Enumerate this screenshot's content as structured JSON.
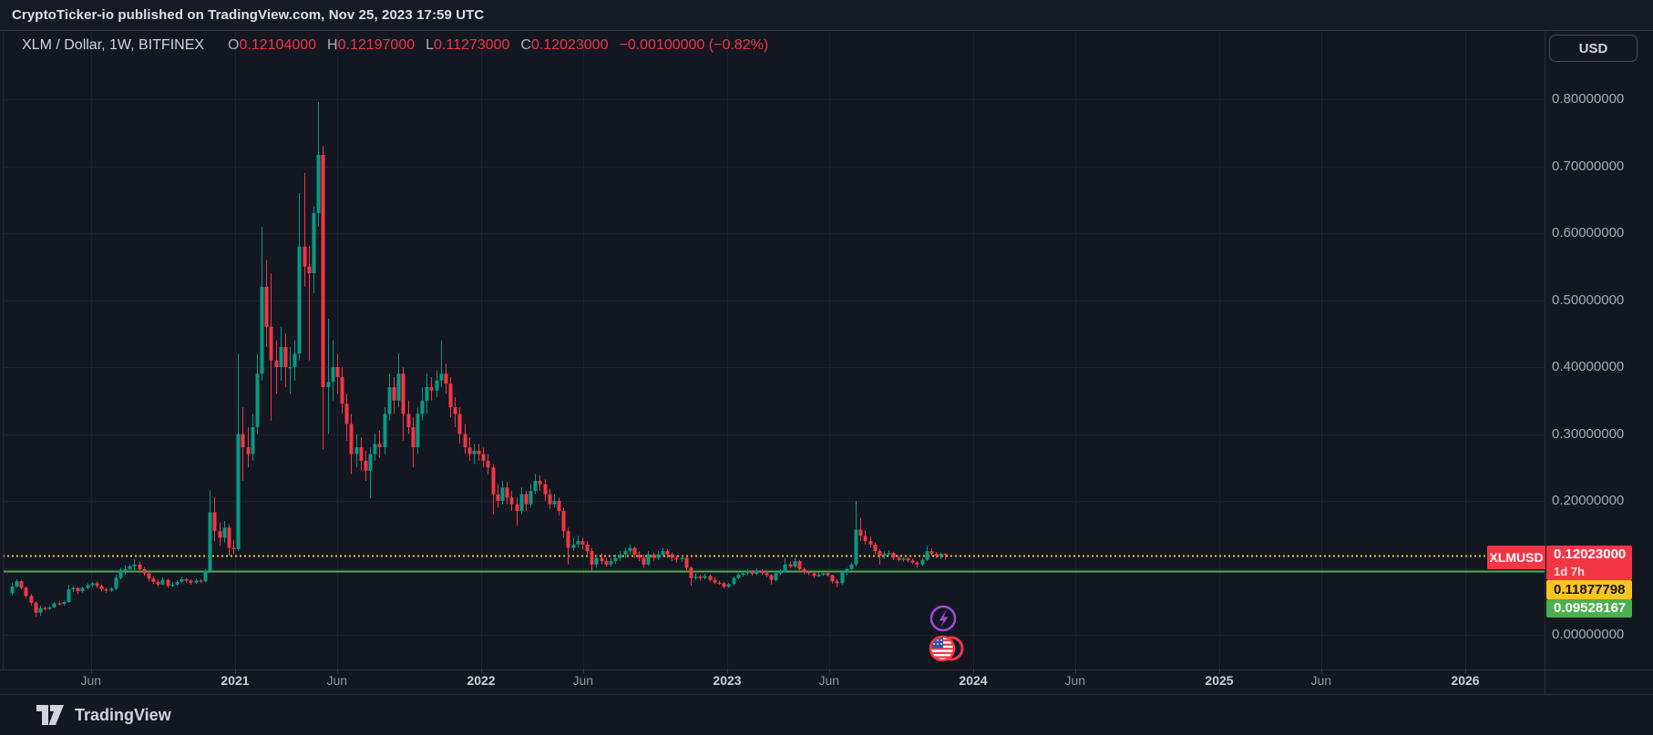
{
  "published_bar": {
    "text": "CryptoTicker-io published on TradingView.com, Nov 25, 2023 17:59 UTC"
  },
  "header": {
    "symbol": "XLM / Dollar, 1W, BITFINEX",
    "o_label": "O",
    "open": "0.12104000",
    "h_label": "H",
    "high": "0.12197000",
    "l_label": "L",
    "low": "0.11273000",
    "c_label": "C",
    "close": "0.12023000",
    "change": "−0.00100000 (−0.82%)"
  },
  "currency_button": {
    "label": "USD"
  },
  "price_labels": {
    "ticker_tag": "XLMUSD",
    "last_price": "0.12023000",
    "countdown": "1d 7h",
    "alert_yellow": "0.11877798",
    "alert_green": "0.09528167"
  },
  "footer": {
    "brand": "TradingView"
  },
  "colors": {
    "background": "#131722",
    "grid": "#1e222d",
    "up": "#089981",
    "down": "#f23645",
    "accent_yellow": "#f7c325",
    "accent_green": "#4caf50",
    "accent_red": "#f23645",
    "badge_purple": "#9b4dd6",
    "axis_text": "#a6aab5"
  },
  "chart_data": {
    "type": "candlestick",
    "title": "XLM / Dollar, 1W, BITFINEX",
    "symbol": "XLMUSD",
    "interval": "1W",
    "exchange": "BITFINEX",
    "ylim": [
      -0.052,
      0.903
    ],
    "grid": true,
    "y_grid": [
      0,
      0.1,
      0.2,
      0.3,
      0.4,
      0.5,
      0.6,
      0.7,
      0.8
    ],
    "y_ticks": [
      {
        "label": "0.80000000",
        "value": 0.8
      },
      {
        "label": "0.70000000",
        "value": 0.7
      },
      {
        "label": "0.60000000",
        "value": 0.6
      },
      {
        "label": "0.50000000",
        "value": 0.5
      },
      {
        "label": "0.40000000",
        "value": 0.4
      },
      {
        "label": "0.30000000",
        "value": 0.3
      },
      {
        "label": "0.20000000",
        "value": 0.2
      },
      {
        "label": "0.00000000",
        "value": 0.0
      }
    ],
    "x_ticks": [
      {
        "label": "Jun",
        "t": 2020.414,
        "major": false
      },
      {
        "label": "2021",
        "t": 2021.0,
        "major": true
      },
      {
        "label": "Jun",
        "t": 2021.414,
        "major": false
      },
      {
        "label": "2022",
        "t": 2022.0,
        "major": true
      },
      {
        "label": "Jun",
        "t": 2022.414,
        "major": false
      },
      {
        "label": "2023",
        "t": 2023.0,
        "major": true
      },
      {
        "label": "Jun",
        "t": 2023.414,
        "major": false
      },
      {
        "label": "2024",
        "t": 2024.0,
        "major": true
      },
      {
        "label": "Jun",
        "t": 2024.414,
        "major": false
      },
      {
        "label": "2025",
        "t": 2025.0,
        "major": true
      },
      {
        "label": "Jun",
        "t": 2025.414,
        "major": false
      },
      {
        "label": "2026",
        "t": 2026.0,
        "major": true
      }
    ],
    "levels": [
      {
        "value": 0.11877798,
        "color": "#f7c325",
        "style": "dotted"
      },
      {
        "value": 0.09528167,
        "color": "#4caf50",
        "style": "solid"
      }
    ],
    "last": {
      "open": 0.12104,
      "high": 0.12197,
      "low": 0.11273,
      "close": 0.12023,
      "change": -0.001,
      "change_pct": -0.82
    },
    "start_date": "2020-02-03",
    "start_t": 2020.092,
    "dt": 0.019165,
    "candles": [
      [
        0.062,
        0.078,
        0.059,
        0.072
      ],
      [
        0.072,
        0.083,
        0.07,
        0.08
      ],
      [
        0.08,
        0.082,
        0.068,
        0.07
      ],
      [
        0.07,
        0.072,
        0.055,
        0.058
      ],
      [
        0.058,
        0.061,
        0.044,
        0.048
      ],
      [
        0.048,
        0.05,
        0.027,
        0.033
      ],
      [
        0.033,
        0.044,
        0.028,
        0.04
      ],
      [
        0.04,
        0.043,
        0.036,
        0.039
      ],
      [
        0.039,
        0.043,
        0.037,
        0.041
      ],
      [
        0.041,
        0.049,
        0.04,
        0.047
      ],
      [
        0.047,
        0.05,
        0.044,
        0.046
      ],
      [
        0.046,
        0.051,
        0.044,
        0.049
      ],
      [
        0.049,
        0.075,
        0.048,
        0.068
      ],
      [
        0.068,
        0.073,
        0.064,
        0.07
      ],
      [
        0.07,
        0.071,
        0.061,
        0.065
      ],
      [
        0.065,
        0.072,
        0.063,
        0.07
      ],
      [
        0.07,
        0.077,
        0.068,
        0.074
      ],
      [
        0.074,
        0.079,
        0.071,
        0.077
      ],
      [
        0.077,
        0.08,
        0.07,
        0.073
      ],
      [
        0.073,
        0.075,
        0.065,
        0.068
      ],
      [
        0.068,
        0.07,
        0.063,
        0.066
      ],
      [
        0.066,
        0.071,
        0.064,
        0.069
      ],
      [
        0.069,
        0.09,
        0.067,
        0.085
      ],
      [
        0.085,
        0.1,
        0.083,
        0.097
      ],
      [
        0.097,
        0.104,
        0.09,
        0.098
      ],
      [
        0.098,
        0.106,
        0.094,
        0.102
      ],
      [
        0.102,
        0.113,
        0.097,
        0.105
      ],
      [
        0.105,
        0.109,
        0.094,
        0.098
      ],
      [
        0.098,
        0.101,
        0.088,
        0.092
      ],
      [
        0.092,
        0.095,
        0.08,
        0.084
      ],
      [
        0.084,
        0.088,
        0.076,
        0.079
      ],
      [
        0.079,
        0.083,
        0.072,
        0.075
      ],
      [
        0.075,
        0.086,
        0.074,
        0.082
      ],
      [
        0.082,
        0.084,
        0.07,
        0.073
      ],
      [
        0.073,
        0.079,
        0.071,
        0.075
      ],
      [
        0.075,
        0.082,
        0.073,
        0.079
      ],
      [
        0.079,
        0.087,
        0.077,
        0.083
      ],
      [
        0.083,
        0.085,
        0.078,
        0.081
      ],
      [
        0.081,
        0.083,
        0.075,
        0.078
      ],
      [
        0.078,
        0.084,
        0.076,
        0.081
      ],
      [
        0.081,
        0.083,
        0.077,
        0.08
      ],
      [
        0.08,
        0.098,
        0.078,
        0.096
      ],
      [
        0.096,
        0.216,
        0.095,
        0.183
      ],
      [
        0.183,
        0.205,
        0.14,
        0.155
      ],
      [
        0.155,
        0.168,
        0.133,
        0.145
      ],
      [
        0.145,
        0.17,
        0.138,
        0.16
      ],
      [
        0.16,
        0.165,
        0.118,
        0.13
      ],
      [
        0.13,
        0.142,
        0.121,
        0.128
      ],
      [
        0.128,
        0.42,
        0.125,
        0.3
      ],
      [
        0.3,
        0.34,
        0.23,
        0.28
      ],
      [
        0.28,
        0.31,
        0.25,
        0.27
      ],
      [
        0.27,
        0.33,
        0.26,
        0.31
      ],
      [
        0.31,
        0.42,
        0.3,
        0.39
      ],
      [
        0.39,
        0.61,
        0.38,
        0.52
      ],
      [
        0.52,
        0.56,
        0.43,
        0.46
      ],
      [
        0.46,
        0.54,
        0.32,
        0.41
      ],
      [
        0.41,
        0.44,
        0.36,
        0.4
      ],
      [
        0.4,
        0.46,
        0.38,
        0.43
      ],
      [
        0.43,
        0.45,
        0.37,
        0.4
      ],
      [
        0.4,
        0.43,
        0.36,
        0.4
      ],
      [
        0.4,
        0.44,
        0.38,
        0.42
      ],
      [
        0.42,
        0.66,
        0.41,
        0.58
      ],
      [
        0.58,
        0.69,
        0.52,
        0.55
      ],
      [
        0.55,
        0.58,
        0.41,
        0.54
      ],
      [
        0.54,
        0.64,
        0.51,
        0.63
      ],
      [
        0.63,
        0.796,
        0.61,
        0.717
      ],
      [
        0.717,
        0.73,
        0.277,
        0.37
      ],
      [
        0.37,
        0.472,
        0.3,
        0.378
      ],
      [
        0.378,
        0.44,
        0.35,
        0.4
      ],
      [
        0.4,
        0.42,
        0.36,
        0.385
      ],
      [
        0.385,
        0.4,
        0.33,
        0.345
      ],
      [
        0.345,
        0.36,
        0.29,
        0.315
      ],
      [
        0.315,
        0.33,
        0.24,
        0.27
      ],
      [
        0.27,
        0.3,
        0.25,
        0.28
      ],
      [
        0.28,
        0.295,
        0.245,
        0.26
      ],
      [
        0.26,
        0.275,
        0.23,
        0.245
      ],
      [
        0.245,
        0.28,
        0.204,
        0.27
      ],
      [
        0.27,
        0.3,
        0.26,
        0.285
      ],
      [
        0.285,
        0.305,
        0.265,
        0.28
      ],
      [
        0.28,
        0.34,
        0.27,
        0.33
      ],
      [
        0.33,
        0.39,
        0.32,
        0.37
      ],
      [
        0.37,
        0.385,
        0.33,
        0.35
      ],
      [
        0.35,
        0.42,
        0.34,
        0.39
      ],
      [
        0.39,
        0.4,
        0.29,
        0.33
      ],
      [
        0.33,
        0.35,
        0.3,
        0.31
      ],
      [
        0.31,
        0.325,
        0.25,
        0.28
      ],
      [
        0.28,
        0.34,
        0.27,
        0.33
      ],
      [
        0.33,
        0.37,
        0.32,
        0.35
      ],
      [
        0.35,
        0.39,
        0.33,
        0.37
      ],
      [
        0.37,
        0.385,
        0.35,
        0.365
      ],
      [
        0.365,
        0.395,
        0.355,
        0.38
      ],
      [
        0.38,
        0.44,
        0.37,
        0.39
      ],
      [
        0.39,
        0.405,
        0.36,
        0.375
      ],
      [
        0.375,
        0.385,
        0.325,
        0.34
      ],
      [
        0.34,
        0.355,
        0.31,
        0.33
      ],
      [
        0.33,
        0.34,
        0.285,
        0.3
      ],
      [
        0.3,
        0.315,
        0.27,
        0.28
      ],
      [
        0.28,
        0.295,
        0.26,
        0.27
      ],
      [
        0.27,
        0.285,
        0.255,
        0.275
      ],
      [
        0.275,
        0.285,
        0.26,
        0.27
      ],
      [
        0.27,
        0.28,
        0.25,
        0.26
      ],
      [
        0.26,
        0.27,
        0.24,
        0.25
      ],
      [
        0.25,
        0.255,
        0.18,
        0.21
      ],
      [
        0.21,
        0.225,
        0.19,
        0.2
      ],
      [
        0.2,
        0.23,
        0.195,
        0.22
      ],
      [
        0.22,
        0.228,
        0.195,
        0.205
      ],
      [
        0.205,
        0.215,
        0.185,
        0.195
      ],
      [
        0.195,
        0.205,
        0.163,
        0.185
      ],
      [
        0.185,
        0.22,
        0.18,
        0.21
      ],
      [
        0.21,
        0.215,
        0.185,
        0.195
      ],
      [
        0.195,
        0.225,
        0.19,
        0.215
      ],
      [
        0.215,
        0.24,
        0.21,
        0.23
      ],
      [
        0.23,
        0.238,
        0.215,
        0.225
      ],
      [
        0.225,
        0.232,
        0.2,
        0.21
      ],
      [
        0.21,
        0.218,
        0.188,
        0.195
      ],
      [
        0.195,
        0.21,
        0.19,
        0.2
      ],
      [
        0.2,
        0.205,
        0.178,
        0.185
      ],
      [
        0.185,
        0.19,
        0.145,
        0.155
      ],
      [
        0.155,
        0.16,
        0.105,
        0.13
      ],
      [
        0.13,
        0.145,
        0.125,
        0.135
      ],
      [
        0.135,
        0.148,
        0.13,
        0.14
      ],
      [
        0.14,
        0.145,
        0.128,
        0.135
      ],
      [
        0.135,
        0.14,
        0.12,
        0.125
      ],
      [
        0.125,
        0.13,
        0.095,
        0.105
      ],
      [
        0.105,
        0.12,
        0.1,
        0.115
      ],
      [
        0.115,
        0.122,
        0.105,
        0.11
      ],
      [
        0.11,
        0.115,
        0.102,
        0.105
      ],
      [
        0.105,
        0.115,
        0.102,
        0.11
      ],
      [
        0.11,
        0.12,
        0.106,
        0.115
      ],
      [
        0.115,
        0.125,
        0.11,
        0.12
      ],
      [
        0.12,
        0.13,
        0.115,
        0.125
      ],
      [
        0.125,
        0.135,
        0.12,
        0.13
      ],
      [
        0.13,
        0.132,
        0.115,
        0.12
      ],
      [
        0.12,
        0.125,
        0.11,
        0.115
      ],
      [
        0.115,
        0.12,
        0.1,
        0.105
      ],
      [
        0.105,
        0.125,
        0.103,
        0.12
      ],
      [
        0.12,
        0.123,
        0.11,
        0.115
      ],
      [
        0.115,
        0.125,
        0.112,
        0.12
      ],
      [
        0.12,
        0.13,
        0.117,
        0.125
      ],
      [
        0.125,
        0.128,
        0.115,
        0.12
      ],
      [
        0.12,
        0.123,
        0.11,
        0.115
      ],
      [
        0.115,
        0.118,
        0.108,
        0.113
      ],
      [
        0.113,
        0.118,
        0.109,
        0.115
      ],
      [
        0.115,
        0.118,
        0.095,
        0.1
      ],
      [
        0.1,
        0.102,
        0.073,
        0.085
      ],
      [
        0.085,
        0.092,
        0.082,
        0.087
      ],
      [
        0.087,
        0.09,
        0.081,
        0.085
      ],
      [
        0.085,
        0.091,
        0.083,
        0.088
      ],
      [
        0.088,
        0.09,
        0.08,
        0.082
      ],
      [
        0.082,
        0.085,
        0.076,
        0.078
      ],
      [
        0.078,
        0.081,
        0.075,
        0.077
      ],
      [
        0.077,
        0.079,
        0.069,
        0.072
      ],
      [
        0.072,
        0.078,
        0.07,
        0.076
      ],
      [
        0.076,
        0.087,
        0.074,
        0.085
      ],
      [
        0.085,
        0.092,
        0.083,
        0.09
      ],
      [
        0.09,
        0.095,
        0.087,
        0.092
      ],
      [
        0.092,
        0.098,
        0.089,
        0.095
      ],
      [
        0.095,
        0.097,
        0.088,
        0.091
      ],
      [
        0.091,
        0.099,
        0.089,
        0.096
      ],
      [
        0.096,
        0.098,
        0.089,
        0.092
      ],
      [
        0.092,
        0.094,
        0.086,
        0.089
      ],
      [
        0.089,
        0.091,
        0.075,
        0.082
      ],
      [
        0.082,
        0.095,
        0.08,
        0.092
      ],
      [
        0.092,
        0.098,
        0.089,
        0.095
      ],
      [
        0.095,
        0.115,
        0.093,
        0.105
      ],
      [
        0.105,
        0.11,
        0.1,
        0.102
      ],
      [
        0.102,
        0.115,
        0.1,
        0.11
      ],
      [
        0.11,
        0.112,
        0.095,
        0.098
      ],
      [
        0.098,
        0.101,
        0.091,
        0.094
      ],
      [
        0.094,
        0.096,
        0.089,
        0.092
      ],
      [
        0.092,
        0.094,
        0.085,
        0.088
      ],
      [
        0.088,
        0.093,
        0.086,
        0.09
      ],
      [
        0.09,
        0.094,
        0.088,
        0.092
      ],
      [
        0.092,
        0.095,
        0.087,
        0.089
      ],
      [
        0.089,
        0.09,
        0.077,
        0.08
      ],
      [
        0.08,
        0.083,
        0.071,
        0.077
      ],
      [
        0.077,
        0.096,
        0.075,
        0.094
      ],
      [
        0.094,
        0.1,
        0.09,
        0.098
      ],
      [
        0.098,
        0.108,
        0.095,
        0.105
      ],
      [
        0.105,
        0.2,
        0.102,
        0.157
      ],
      [
        0.157,
        0.175,
        0.14,
        0.148
      ],
      [
        0.148,
        0.156,
        0.135,
        0.14
      ],
      [
        0.14,
        0.147,
        0.13,
        0.135
      ],
      [
        0.135,
        0.138,
        0.12,
        0.125
      ],
      [
        0.125,
        0.128,
        0.105,
        0.118
      ],
      [
        0.118,
        0.125,
        0.113,
        0.121
      ],
      [
        0.121,
        0.126,
        0.118,
        0.122
      ],
      [
        0.122,
        0.124,
        0.112,
        0.115
      ],
      [
        0.115,
        0.119,
        0.109,
        0.112
      ],
      [
        0.112,
        0.116,
        0.109,
        0.114
      ],
      [
        0.114,
        0.116,
        0.108,
        0.111
      ],
      [
        0.111,
        0.114,
        0.106,
        0.108
      ],
      [
        0.108,
        0.11,
        0.1,
        0.105
      ],
      [
        0.105,
        0.115,
        0.103,
        0.112
      ],
      [
        0.112,
        0.133,
        0.11,
        0.125
      ],
      [
        0.125,
        0.129,
        0.118,
        0.121
      ],
      [
        0.121,
        0.124,
        0.114,
        0.118
      ],
      [
        0.118,
        0.123,
        0.113,
        0.121
      ],
      [
        0.12104,
        0.12197,
        0.11273,
        0.12023
      ]
    ]
  }
}
